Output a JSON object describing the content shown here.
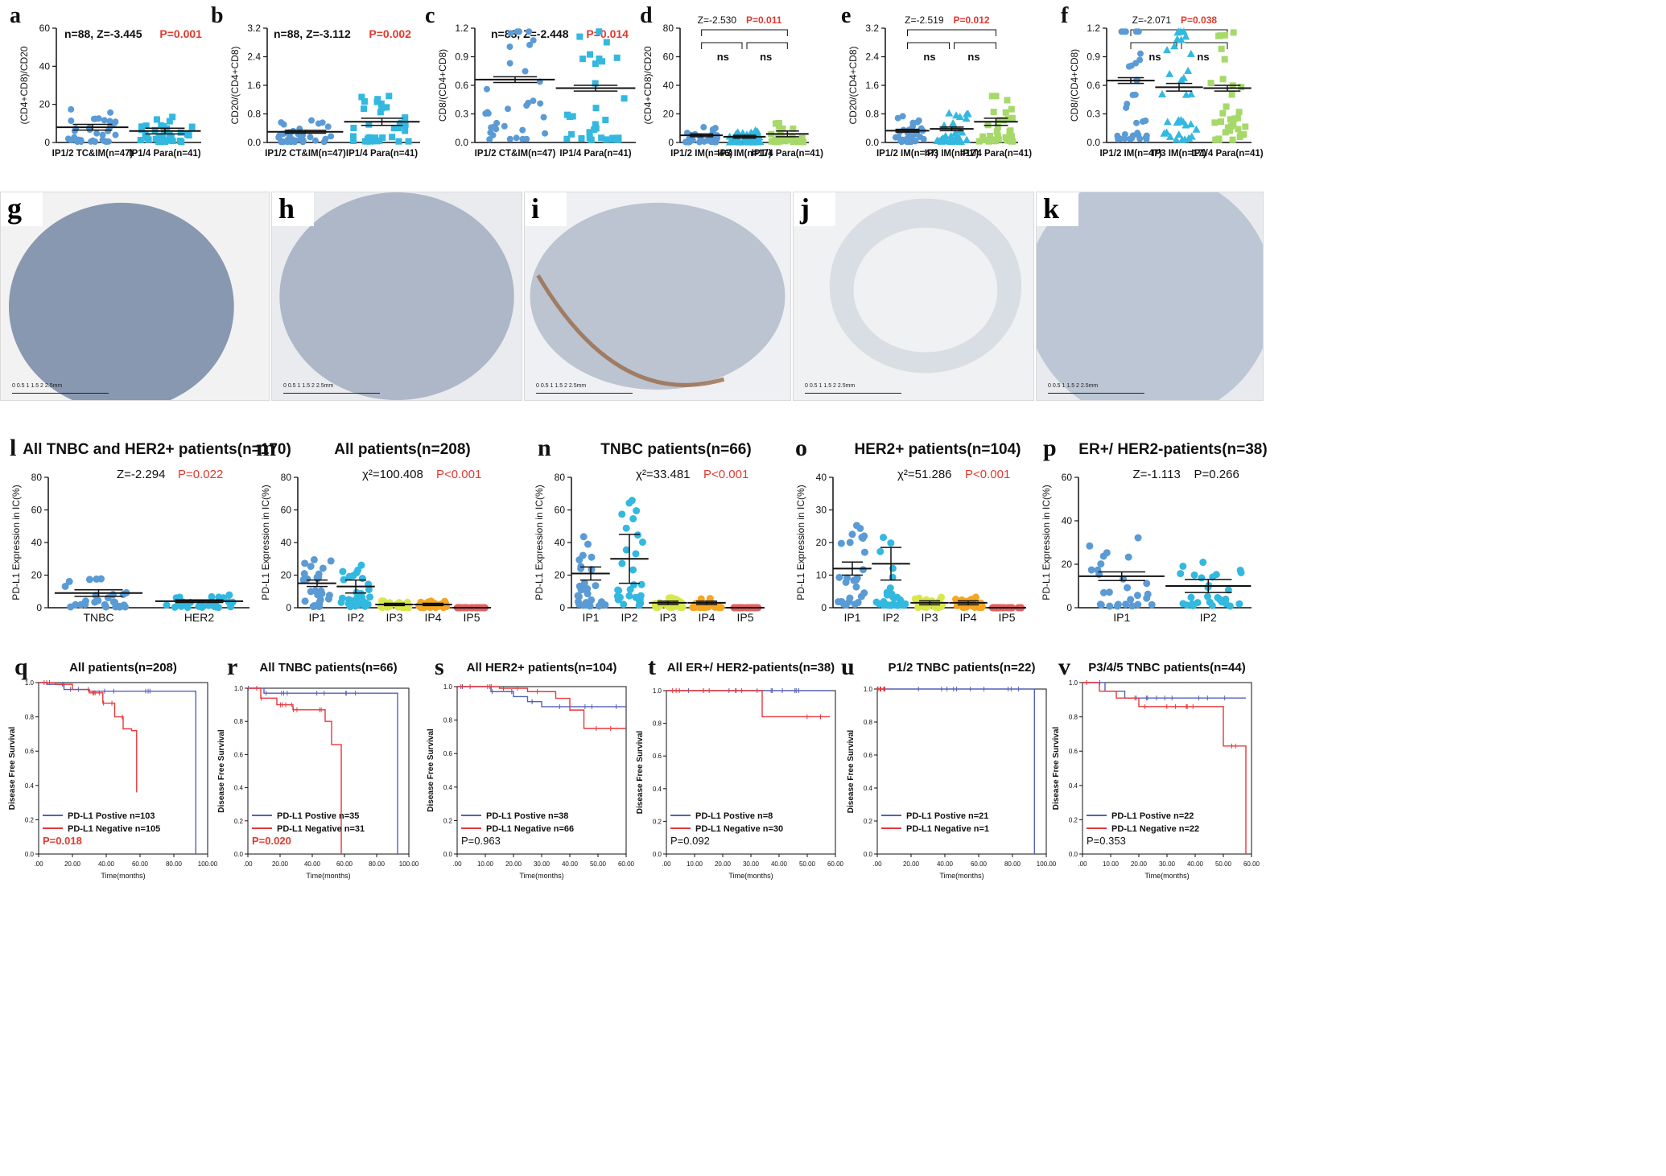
{
  "chart_data": [
    {
      "id": "a",
      "type": "scatter",
      "panel_label": "a",
      "stat_black": "n=88, Z=-3.445",
      "stat_red": "P=0.001",
      "ylabel": "(CD4+CD8)/CD20",
      "ylim": [
        0,
        60
      ],
      "yticks": [
        "0",
        "20",
        "40",
        "60"
      ],
      "categories": [
        "IP1/2 TC&IM(n=47)",
        "IP1/4 Para(n=41)"
      ],
      "series": [
        {
          "marker": "circle",
          "color": "#5b9bd5",
          "mean": 8,
          "sem": 1.5
        },
        {
          "marker": "square",
          "color": "#33b8e0",
          "mean": 6,
          "sem": 1.5
        }
      ]
    },
    {
      "id": "b",
      "type": "scatter",
      "panel_label": "b",
      "stat_black": "n=88, Z=-3.112",
      "stat_red": "P=0.002",
      "ylabel": "CD20/(CD4+CD8)",
      "ylim": [
        0,
        3.2
      ],
      "yticks": [
        "0.0",
        "0.8",
        "1.6",
        "2.4",
        "3.2"
      ],
      "categories": [
        "IP1/2 CT&IM(n=47)",
        "IP1/4 Para(n=41)"
      ],
      "series": [
        {
          "marker": "circle",
          "color": "#5b9bd5",
          "mean": 0.3,
          "sem": 0.04
        },
        {
          "marker": "square",
          "color": "#33b8e0",
          "mean": 0.58,
          "sem": 0.1
        }
      ]
    },
    {
      "id": "c",
      "type": "scatter",
      "panel_label": "c",
      "stat_black": "n=88, Z=-2.448",
      "stat_red": "P=0.014",
      "ylabel": "CD8/(CD4+CD8)",
      "ylim": [
        0,
        1.2
      ],
      "yticks": [
        "0.0",
        "0.3",
        "0.6",
        "0.9",
        "1.2"
      ],
      "categories": [
        "IP1/2 CT&IM(n=47)",
        "IP1/4 Para(n=41)"
      ],
      "series": [
        {
          "marker": "circle",
          "color": "#5b9bd5",
          "mean": 0.66,
          "sem": 0.03
        },
        {
          "marker": "square",
          "color": "#33b8e0",
          "mean": 0.57,
          "sem": 0.03
        }
      ]
    },
    {
      "id": "d",
      "type": "scatter",
      "panel_label": "d",
      "stat_black": "Z=-2.530",
      "stat_red": "P=0.011",
      "ns": [
        "ns",
        "ns"
      ],
      "ylabel": "(CD4+CD8)/CD20",
      "ylim": [
        0,
        80
      ],
      "yticks": [
        "0",
        "20",
        "40",
        "60",
        "80"
      ],
      "categories": [
        "IP1/2 IM(n=46)",
        "IP3 IM(n=17)",
        "IP1/4 Para(n=41)"
      ],
      "series": [
        {
          "marker": "circle",
          "color": "#5b9bd5",
          "mean": 5,
          "sem": 1
        },
        {
          "marker": "triangle",
          "color": "#33b8e0",
          "mean": 4,
          "sem": 1
        },
        {
          "marker": "square",
          "color": "#a6d96a",
          "mean": 6,
          "sem": 2
        }
      ]
    },
    {
      "id": "e",
      "type": "scatter",
      "panel_label": "e",
      "stat_black": "Z=-2.519",
      "stat_red": "P=0.012",
      "ns": [
        "ns",
        "ns"
      ],
      "ylabel": "CD20/(CD4+CD8)",
      "ylim": [
        0,
        3.2
      ],
      "yticks": [
        "0.0",
        "0.8",
        "1.6",
        "2.4",
        "3.2"
      ],
      "categories": [
        "IP1/2 IM(n=47)",
        "IP3 IM(n=17)",
        "IP1/4 Para(n=41)"
      ],
      "series": [
        {
          "marker": "circle",
          "color": "#5b9bd5",
          "mean": 0.33,
          "sem": 0.04
        },
        {
          "marker": "triangle",
          "color": "#33b8e0",
          "mean": 0.38,
          "sem": 0.05
        },
        {
          "marker": "square",
          "color": "#a6d96a",
          "mean": 0.58,
          "sem": 0.1
        }
      ]
    },
    {
      "id": "f",
      "type": "scatter",
      "panel_label": "f",
      "stat_black": "Z=-2.071",
      "stat_red": "P=0.038",
      "ns": [
        "ns",
        "ns"
      ],
      "ylabel": "CD8/(CD4+CD8)",
      "ylim": [
        0,
        1.2
      ],
      "yticks": [
        "0.0",
        "0.3",
        "0.6",
        "0.9",
        "1.2"
      ],
      "categories": [
        "IP1/2 IM(n=47)",
        "IP3 IM(n=17)",
        "IP1/4 Para(n=41)"
      ],
      "series": [
        {
          "marker": "circle",
          "color": "#5b9bd5",
          "mean": 0.65,
          "sem": 0.03
        },
        {
          "marker": "triangle",
          "color": "#33b8e0",
          "mean": 0.58,
          "sem": 0.04
        },
        {
          "marker": "square",
          "color": "#a6d96a",
          "mean": 0.57,
          "sem": 0.03
        }
      ]
    },
    {
      "id": "l",
      "type": "scatter",
      "panel_label": "l",
      "title": "All TNBC and HER2+ patients(n=170)",
      "stat_black": "Z=-2.294",
      "stat_red": "P=0.022",
      "ylabel": "PD-L1 Expression in IC(%)",
      "ylim": [
        0,
        80
      ],
      "yticks": [
        "0",
        "20",
        "40",
        "60",
        "80"
      ],
      "categories": [
        "TNBC",
        "HER2"
      ],
      "series": [
        {
          "marker": "circle",
          "color": "#5b9bd5",
          "mean": 9,
          "sem": 2
        },
        {
          "marker": "circle",
          "color": "#33b8e0",
          "mean": 4,
          "sem": 0.8
        }
      ]
    },
    {
      "id": "m",
      "type": "scatter",
      "panel_label": "m",
      "title": "All patients(n=208)",
      "stat_black": "χ²=100.408",
      "stat_red": "P<0.001",
      "ylabel": "PD-L1 Expression in IC(%)",
      "ylim": [
        0,
        80
      ],
      "yticks": [
        "0",
        "20",
        "40",
        "60",
        "80"
      ],
      "categories": [
        "IP1",
        "IP2",
        "IP3",
        "IP4",
        "IP5"
      ],
      "series": [
        {
          "marker": "circle",
          "color": "#5b9bd5",
          "mean": 15,
          "sem": 2
        },
        {
          "marker": "circle",
          "color": "#33b8e0",
          "mean": 13,
          "sem": 4
        },
        {
          "marker": "circle",
          "color": "#d8e84a",
          "mean": 2,
          "sem": 0.7
        },
        {
          "marker": "circle",
          "color": "#f5a623",
          "mean": 2,
          "sem": 0.7
        },
        {
          "marker": "circle",
          "color": "#e06060",
          "mean": 0,
          "sem": 0
        }
      ]
    },
    {
      "id": "n",
      "type": "scatter",
      "panel_label": "n",
      "title": "TNBC patients(n=66)",
      "stat_black": "χ²=33.481",
      "stat_red": "P<0.001",
      "ylabel": "PD-L1 Expression in IC(%)",
      "ylim": [
        0,
        80
      ],
      "yticks": [
        "0",
        "20",
        "40",
        "60",
        "80"
      ],
      "categories": [
        "IP1",
        "IP2",
        "IP3",
        "IP4",
        "IP5"
      ],
      "series": [
        {
          "marker": "circle",
          "color": "#5b9bd5",
          "mean": 21,
          "sem": 4
        },
        {
          "marker": "circle",
          "color": "#33b8e0",
          "mean": 30,
          "sem": 15
        },
        {
          "marker": "circle",
          "color": "#d8e84a",
          "mean": 3,
          "sem": 1
        },
        {
          "marker": "circle",
          "color": "#f5a623",
          "mean": 3,
          "sem": 1
        },
        {
          "marker": "circle",
          "color": "#e06060",
          "mean": 0,
          "sem": 0
        }
      ]
    },
    {
      "id": "o",
      "type": "scatter",
      "panel_label": "o",
      "title": "HER2+ patients(n=104)",
      "stat_black": "χ²=51.286",
      "stat_red": "P<0.001",
      "ylabel": "PD-L1 Expression in IC(%)",
      "ylim": [
        0,
        40
      ],
      "yticks": [
        "0",
        "10",
        "20",
        "30",
        "40"
      ],
      "categories": [
        "IP1",
        "IP2",
        "IP3",
        "IP4",
        "IP5"
      ],
      "series": [
        {
          "marker": "circle",
          "color": "#5b9bd5",
          "mean": 12,
          "sem": 2
        },
        {
          "marker": "circle",
          "color": "#33b8e0",
          "mean": 13.5,
          "sem": 5
        },
        {
          "marker": "circle",
          "color": "#d8e84a",
          "mean": 1.5,
          "sem": 0.6
        },
        {
          "marker": "circle",
          "color": "#f5a623",
          "mean": 1.5,
          "sem": 0.6
        },
        {
          "marker": "circle",
          "color": "#e06060",
          "mean": 0,
          "sem": 0
        }
      ]
    },
    {
      "id": "p",
      "type": "scatter",
      "panel_label": "p",
      "title": "ER+/ HER2-patients(n=38)",
      "stat_black": "Z=-1.113",
      "stat_red": "",
      "stat_extra": "P=0.266",
      "ylabel": "PD-L1 Expression in IC(%)",
      "ylim": [
        0,
        60
      ],
      "yticks": [
        "0",
        "20",
        "40",
        "60"
      ],
      "categories": [
        "IP1",
        "IP2"
      ],
      "series": [
        {
          "marker": "circle",
          "color": "#5b9bd5",
          "mean": 14.5,
          "sem": 2
        },
        {
          "marker": "circle",
          "color": "#33b8e0",
          "mean": 10,
          "sem": 3
        }
      ]
    },
    {
      "id": "q",
      "type": "line",
      "subtype": "kaplan-meier",
      "panel_label": "q",
      "title": "All patients(n=208)",
      "xlabel": "Time(months)",
      "ylabel": "Disease Free Survival",
      "xlim": [
        0,
        100
      ],
      "ylim": [
        0,
        1
      ],
      "xticks": [
        ".00",
        "20.00",
        "40.00",
        "60.00",
        "80.00",
        "100.00"
      ],
      "yticks": [
        "0.0",
        "0.2",
        "0.4",
        "0.6",
        "0.8",
        "1.0"
      ],
      "series": [
        {
          "name": "PD-L1 Postive n=103",
          "color": "#5560b8",
          "x": [
            0,
            5,
            15,
            30,
            93,
            93
          ],
          "y": [
            1,
            0.99,
            0.96,
            0.95,
            0.95,
            0
          ]
        },
        {
          "name": "PD-L1 Negative n=105",
          "color": "#e8373b",
          "x": [
            0,
            10,
            20,
            30,
            38,
            45,
            50,
            55,
            58,
            58
          ],
          "y": [
            1,
            0.99,
            0.96,
            0.94,
            0.88,
            0.8,
            0.73,
            0.72,
            0.72,
            0.36
          ]
        }
      ],
      "pvalue": "P=0.018",
      "pvalue_red": true
    },
    {
      "id": "r",
      "type": "line",
      "subtype": "kaplan-meier",
      "panel_label": "r",
      "title": "All TNBC patients(n=66)",
      "xlabel": "Time(months)",
      "ylabel": "Disease Free Survival",
      "xlim": [
        0,
        100
      ],
      "ylim": [
        0,
        1
      ],
      "xticks": [
        ".00",
        "20.00",
        "40.00",
        "60.00",
        "80.00",
        "100.00"
      ],
      "yticks": [
        "0.0",
        "0.2",
        "0.4",
        "0.6",
        "0.8",
        "1.0"
      ],
      "series": [
        {
          "name": "PD-L1 Postive n=35",
          "color": "#5560b8",
          "x": [
            0,
            10,
            93,
            93
          ],
          "y": [
            1,
            0.97,
            0.97,
            0
          ]
        },
        {
          "name": "PD-L1 Negative n=31",
          "color": "#e8373b",
          "x": [
            0,
            8,
            18,
            28,
            48,
            52,
            58,
            58
          ],
          "y": [
            1,
            0.94,
            0.9,
            0.87,
            0.8,
            0.66,
            0.66,
            0
          ]
        }
      ],
      "pvalue": "P=0.020",
      "pvalue_red": true
    },
    {
      "id": "s",
      "type": "line",
      "subtype": "kaplan-meier",
      "panel_label": "s",
      "title": "All HER2+ patients(n=104)",
      "xlabel": "Time(months)",
      "ylabel": "Disease Free Survival",
      "xlim": [
        0,
        60
      ],
      "ylim": [
        0,
        1
      ],
      "xticks": [
        ".00",
        "10.00",
        "20.00",
        "30.00",
        "40.00",
        "50.00",
        "60.00"
      ],
      "yticks": [
        "0.0",
        "0.2",
        "0.4",
        "0.6",
        "0.8",
        "1.0"
      ],
      "series": [
        {
          "name": "PD-L1 Postive n=38",
          "color": "#5560b8",
          "x": [
            0,
            12,
            20,
            25,
            30,
            60
          ],
          "y": [
            1,
            0.97,
            0.94,
            0.91,
            0.88,
            0.88
          ]
        },
        {
          "name": "PD-L1 Negative n=66",
          "color": "#e8373b",
          "x": [
            0,
            15,
            25,
            35,
            40,
            45,
            60
          ],
          "y": [
            1,
            0.99,
            0.97,
            0.93,
            0.86,
            0.75,
            0.75
          ]
        }
      ],
      "pvalue": "P=0.963",
      "pvalue_red": false
    },
    {
      "id": "t",
      "type": "line",
      "subtype": "kaplan-meier",
      "panel_label": "t",
      "title": "All ER+/ HER2-patients(n=38)",
      "xlabel": "Time(months)",
      "ylabel": "Disease Free Survival",
      "xlim": [
        0,
        60
      ],
      "ylim": [
        0,
        1
      ],
      "xticks": [
        ".00",
        "10.00",
        "20.00",
        "30.00",
        "40.00",
        "50.00",
        "60.00"
      ],
      "yticks": [
        "0.0",
        "0.2",
        "0.4",
        "0.6",
        "0.8",
        "1.0"
      ],
      "series": [
        {
          "name": "PD-L1 Postive n=8",
          "color": "#5560b8",
          "x": [
            0,
            58
          ],
          "y": [
            1,
            1
          ]
        },
        {
          "name": "PD-L1 Negative n=30",
          "color": "#e8373b",
          "x": [
            0,
            34,
            34,
            58
          ],
          "y": [
            1,
            1,
            0.84,
            0.84
          ]
        }
      ],
      "pvalue": "P=0.092",
      "pvalue_red": false
    },
    {
      "id": "u",
      "type": "line",
      "subtype": "kaplan-meier",
      "panel_label": "u",
      "title": "P1/2 TNBC patients(n=22)",
      "xlabel": "Time(months)",
      "ylabel": "Disease Free Survival",
      "xlim": [
        0,
        100
      ],
      "ylim": [
        0,
        1
      ],
      "xticks": [
        ".00",
        "20.00",
        "40.00",
        "60.00",
        "80.00",
        "100.00"
      ],
      "yticks": [
        "0.0",
        "0.2",
        "0.4",
        "0.6",
        "0.8",
        "1.0"
      ],
      "series": [
        {
          "name": "PD-L1 Postive n=21",
          "color": "#5560b8",
          "x": [
            0,
            93,
            93
          ],
          "y": [
            1,
            1,
            0
          ]
        },
        {
          "name": "PD-L1 Negative n=1",
          "color": "#e8373b",
          "x": [
            0,
            5
          ],
          "y": [
            1,
            1
          ]
        }
      ],
      "pvalue": "",
      "pvalue_red": false
    },
    {
      "id": "v",
      "type": "line",
      "subtype": "kaplan-meier",
      "panel_label": "v",
      "title": "P3/4/5 TNBC patients(n=44)",
      "xlabel": "Time(months)",
      "ylabel": "Disease Free Survival",
      "xlim": [
        0,
        60
      ],
      "ylim": [
        0,
        1
      ],
      "xticks": [
        ".00",
        "10.00",
        "20.00",
        "30.00",
        "40.00",
        "50.00",
        "60.00"
      ],
      "yticks": [
        "0.0",
        "0.2",
        "0.4",
        "0.6",
        "0.8",
        "1.0"
      ],
      "series": [
        {
          "name": "PD-L1 Postive n=22",
          "color": "#5560b8",
          "x": [
            0,
            8,
            15,
            58
          ],
          "y": [
            1,
            0.95,
            0.91,
            0.91
          ]
        },
        {
          "name": "PD-L1 Negative n=22",
          "color": "#e8373b",
          "x": [
            0,
            6,
            12,
            20,
            45,
            50,
            57,
            58
          ],
          "y": [
            1,
            0.95,
            0.91,
            0.86,
            0.86,
            0.63,
            0.63,
            0
          ]
        }
      ],
      "pvalue": "P=0.353",
      "pvalue_red": false
    }
  ],
  "micrographs": [
    {
      "label": "g",
      "bg": "#7c8ea8",
      "border": "#f2f2f2",
      "scale": "0  0.5  1  1.5  2  2.5mm"
    },
    {
      "label": "h",
      "bg": "#a7b1c2",
      "border": "#e9ebee",
      "scale": "0  0.5  1  1.5  2  2.5mm"
    },
    {
      "label": "i",
      "bg": "#b5bfcc",
      "border": "#eef0f3",
      "scale": "0  0.5  1  1.5  2  2.5mm"
    },
    {
      "label": "j",
      "bg": "#d6dbe2",
      "border": "#eff1f3",
      "scale": "0  0.5  1  1.5  2  2.5mm"
    },
    {
      "label": "k",
      "bg": "#b7c2d2",
      "border": "#e8eaed",
      "scale": "0  0.5  1  1.5  2  2.5mm"
    }
  ]
}
